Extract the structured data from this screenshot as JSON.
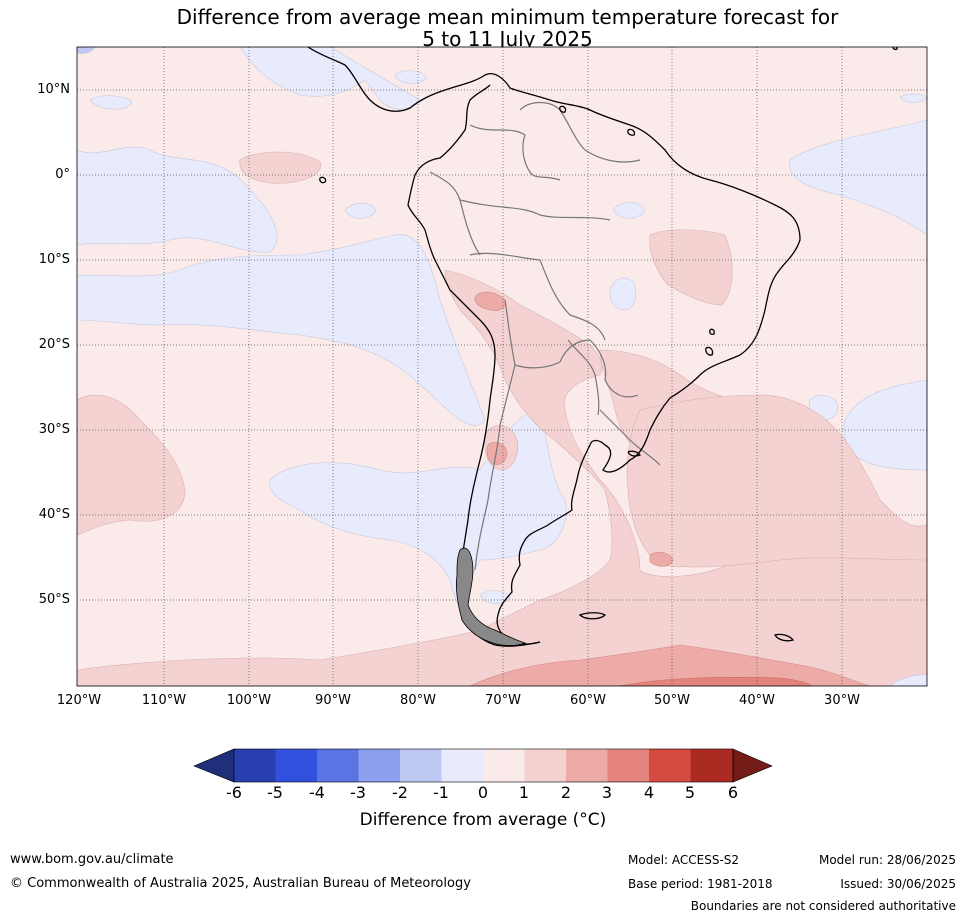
{
  "title_line1": "Difference from average mean minimum temperature forecast for",
  "title_line2": "5 to 11 July 2025",
  "lat_labels": [
    "10°N",
    "0°",
    "10°S",
    "20°S",
    "30°S",
    "40°S",
    "50°S"
  ],
  "lon_labels": [
    "120°W",
    "110°W",
    "100°W",
    "90°W",
    "80°W",
    "70°W",
    "60°W",
    "50°W",
    "40°W",
    "30°W"
  ],
  "colorbar": {
    "ticks": [
      "-6",
      "-5",
      "-4",
      "-3",
      "-2",
      "-1",
      "0",
      "1",
      "2",
      "3",
      "4",
      "5",
      "6"
    ],
    "colors": [
      "#1f2f7a",
      "#283fb0",
      "#3150dd",
      "#5b74e4",
      "#8c9eee",
      "#c0c8f4",
      "#e8ebfb",
      "#fbeaea",
      "#f5d2d2",
      "#ecaba7",
      "#e4837c",
      "#d64b3f",
      "#ab2a22",
      "#741c17"
    ],
    "label": "Difference from average (°C)"
  },
  "footer": {
    "website": "www.bom.gov.au/climate",
    "copyright": "© Commonwealth of Australia 2025, Australian Bureau of Meteorology",
    "model": "Model: ACCESS-S2",
    "base_period": "Base period: 1981-2018",
    "model_run": "Model run: 28/06/2025",
    "issued": "Issued: 30/06/2025",
    "disclaimer": "Boundaries are not considered authoritative"
  }
}
